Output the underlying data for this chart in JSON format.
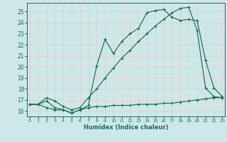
{
  "xlabel": "Humidex (Indice chaleur)",
  "bg_color": "#cde8e8",
  "grid_color": "#e8c8c8",
  "line_color": "#1a6b5a",
  "line1_flat": {
    "x": [
      0,
      1,
      2,
      3,
      4,
      5,
      6,
      7,
      8,
      9,
      10,
      11,
      12,
      13,
      14,
      15,
      16,
      17,
      18,
      19,
      20,
      21,
      22,
      23
    ],
    "y": [
      16.6,
      16.6,
      16.3,
      16.1,
      16.1,
      15.8,
      16.1,
      16.3,
      16.4,
      16.4,
      16.5,
      16.5,
      16.5,
      16.6,
      16.6,
      16.6,
      16.7,
      16.7,
      16.8,
      16.9,
      17.0,
      17.1,
      17.2,
      17.2
    ]
  },
  "line2_spike": {
    "x": [
      0,
      1,
      2,
      3,
      4,
      5,
      6,
      7,
      8,
      9,
      10,
      11,
      12,
      13,
      14,
      15,
      16,
      17,
      18,
      19,
      20,
      21,
      22,
      23
    ],
    "y": [
      16.6,
      16.6,
      16.9,
      16.3,
      16.1,
      15.8,
      16.1,
      16.5,
      20.1,
      22.5,
      21.2,
      22.3,
      23.0,
      23.5,
      24.9,
      25.1,
      25.2,
      24.5,
      24.2,
      24.3,
      24.2,
      20.6,
      18.1,
      17.3
    ]
  },
  "line3_rise": {
    "x": [
      0,
      1,
      2,
      3,
      4,
      5,
      6,
      7,
      8,
      9,
      10,
      11,
      12,
      13,
      14,
      15,
      16,
      17,
      18,
      19,
      20,
      21,
      22,
      23
    ],
    "y": [
      16.6,
      16.6,
      17.2,
      16.9,
      16.4,
      16.1,
      16.3,
      17.2,
      18.0,
      19.0,
      19.9,
      20.8,
      21.5,
      22.3,
      23.0,
      23.7,
      24.3,
      24.9,
      25.3,
      25.4,
      23.3,
      18.1,
      17.3,
      17.2
    ]
  },
  "ylim": [
    15.5,
    25.8
  ],
  "xlim": [
    -0.3,
    23.3
  ],
  "yticks": [
    16,
    17,
    18,
    19,
    20,
    21,
    22,
    23,
    24,
    25
  ],
  "xticks": [
    0,
    1,
    2,
    3,
    4,
    5,
    6,
    7,
    8,
    9,
    10,
    11,
    12,
    13,
    14,
    15,
    16,
    17,
    18,
    19,
    20,
    21,
    22,
    23
  ]
}
